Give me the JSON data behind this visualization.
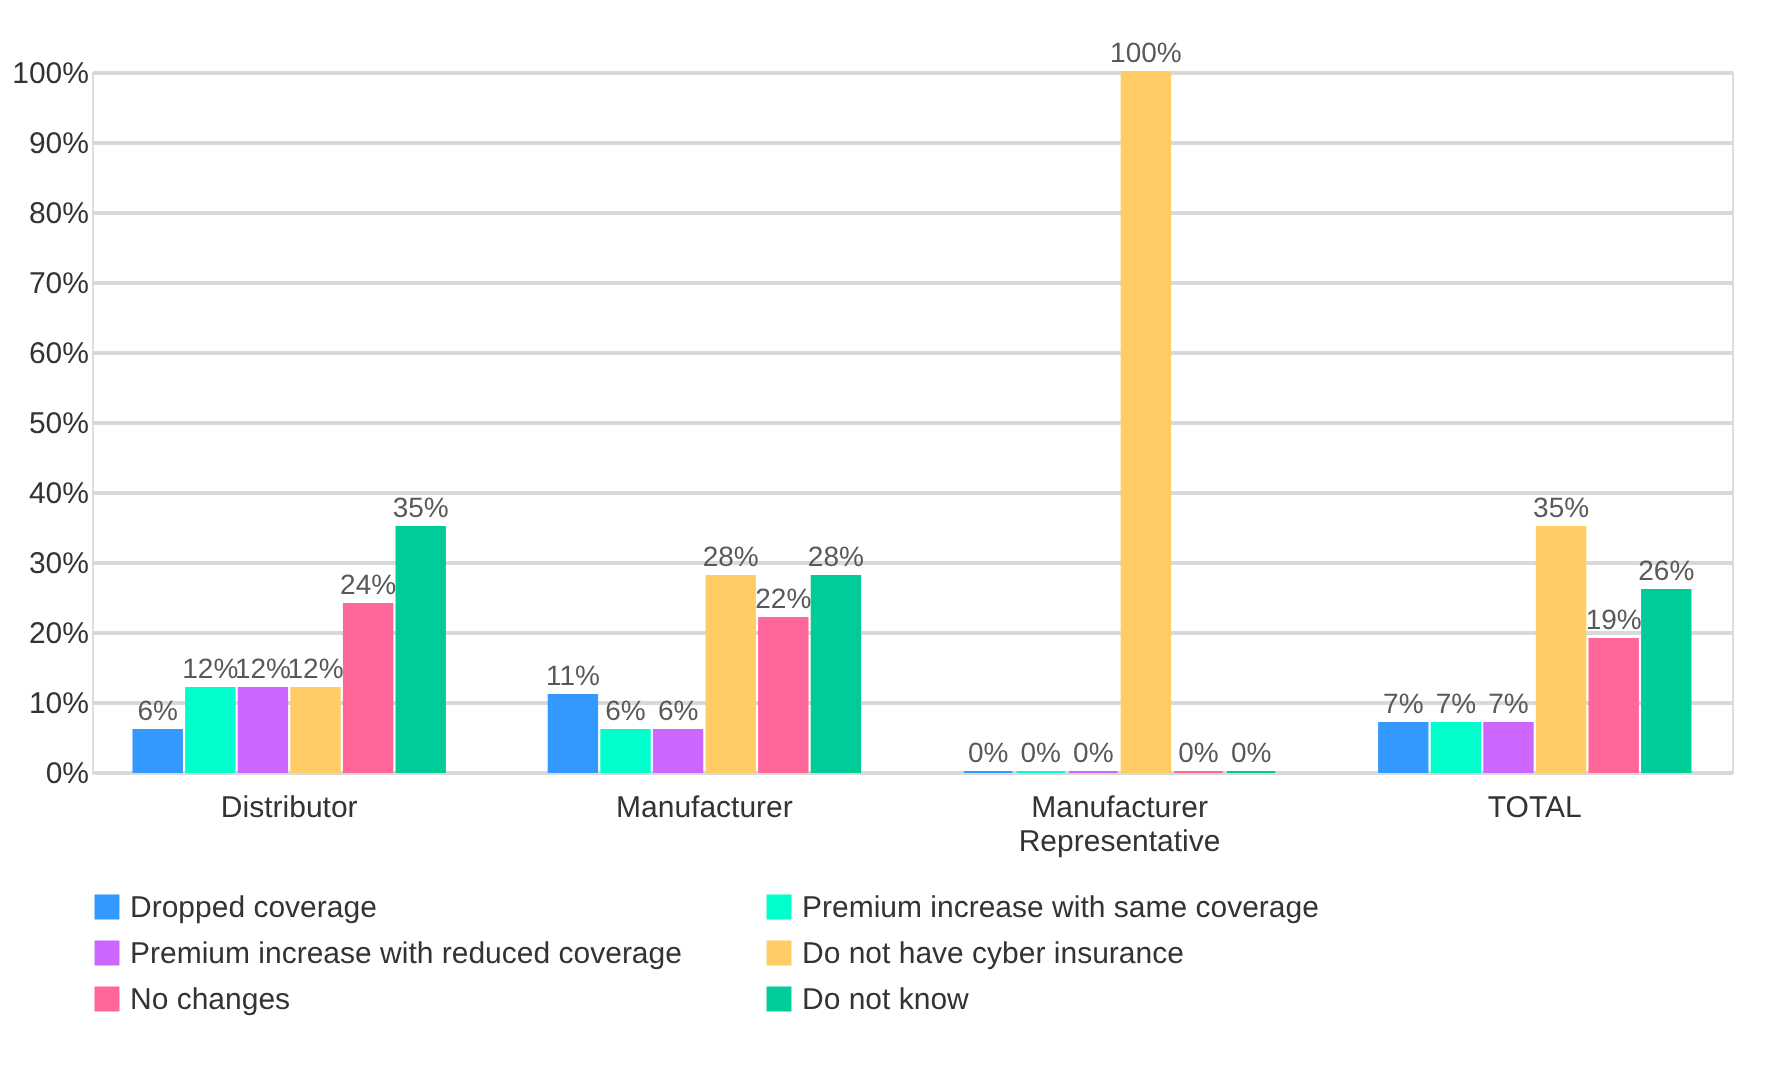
{
  "chart_data": {
    "type": "bar",
    "categories": [
      "Distributor",
      "Manufacturer",
      "Manufacturer Representative",
      "TOTAL"
    ],
    "series": [
      {
        "name": "Dropped coverage",
        "color": "#3399ff",
        "values": [
          6,
          11,
          0,
          7
        ],
        "value_labels": [
          "6%",
          "11%",
          "0%",
          "7%"
        ]
      },
      {
        "name": "Premium increase with same coverage",
        "color": "#00ffcc",
        "values": [
          12,
          6,
          0,
          7
        ],
        "value_labels": [
          "12%",
          "6%",
          "0%",
          "7%"
        ]
      },
      {
        "name": "Premium increase with reduced coverage",
        "color": "#cc66ff",
        "values": [
          12,
          6,
          0,
          7
        ],
        "value_labels": [
          "12%",
          "6%",
          "0%",
          "7%"
        ]
      },
      {
        "name": "Do not have cyber insurance",
        "color": "#ffcc66",
        "values": [
          12,
          28,
          100,
          35
        ],
        "value_labels": [
          "12%",
          "28%",
          "100%",
          "35%"
        ]
      },
      {
        "name": "No changes",
        "color": "#ff6699",
        "values": [
          24,
          22,
          0,
          19
        ],
        "value_labels": [
          "24%",
          "22%",
          "0%",
          "19%"
        ]
      },
      {
        "name": "Do not know",
        "color": "#00cc99",
        "values": [
          35,
          28,
          0,
          26
        ],
        "value_labels": [
          "35%",
          "28%",
          "0%",
          "26%"
        ]
      }
    ],
    "ylim": [
      0,
      100
    ],
    "yticks": [
      {
        "value": 0,
        "label": "0%"
      },
      {
        "value": 10,
        "label": "10%"
      },
      {
        "value": 20,
        "label": "20%"
      },
      {
        "value": 30,
        "label": "30%"
      },
      {
        "value": 40,
        "label": "40%"
      },
      {
        "value": 50,
        "label": "50%"
      },
      {
        "value": 60,
        "label": "60%"
      },
      {
        "value": 70,
        "label": "70%"
      },
      {
        "value": 80,
        "label": "80%"
      },
      {
        "value": 90,
        "label": "90%"
      },
      {
        "value": 100,
        "label": "100%"
      }
    ],
    "grid": "y",
    "legend": "bottom"
  }
}
